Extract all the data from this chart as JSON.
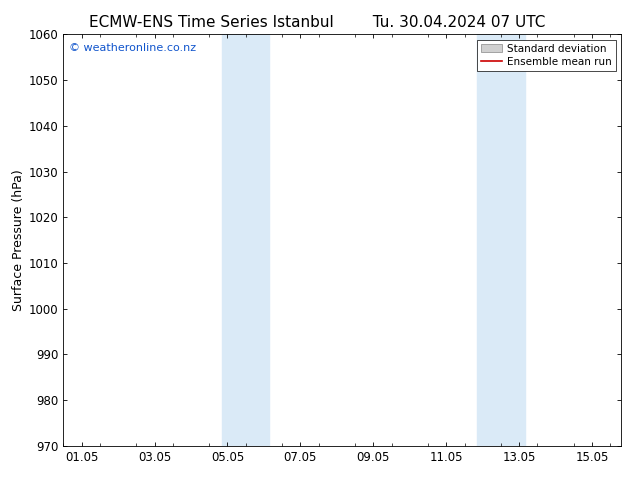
{
  "title_left": "ECMW-ENS Time Series Istanbul",
  "title_right": "Tu. 30.04.2024 07 UTC",
  "ylabel": "Surface Pressure (hPa)",
  "ylim": [
    970,
    1060
  ],
  "yticks": [
    970,
    980,
    990,
    1000,
    1010,
    1020,
    1030,
    1040,
    1050,
    1060
  ],
  "xtick_labels": [
    "01.05",
    "03.05",
    "05.05",
    "07.05",
    "09.05",
    "11.05",
    "13.05",
    "15.05"
  ],
  "xtick_positions": [
    0,
    2,
    4,
    6,
    8,
    10,
    12,
    14
  ],
  "xlim": [
    -0.5,
    14.8
  ],
  "shaded_bands": [
    {
      "xmin": 3.85,
      "xmax": 5.15
    },
    {
      "xmin": 10.85,
      "xmax": 12.15
    }
  ],
  "shaded_color": "#daeaf7",
  "watermark_text": "© weatheronline.co.nz",
  "watermark_color": "#1155cc",
  "legend_std_label": "Standard deviation",
  "legend_mean_label": "Ensemble mean run",
  "legend_std_facecolor": "#d0d0d0",
  "legend_std_edgecolor": "#888888",
  "legend_mean_color": "#cc0000",
  "bg_color": "#ffffff",
  "title_fontsize": 11,
  "ylabel_fontsize": 9,
  "tick_fontsize": 8.5,
  "watermark_fontsize": 8,
  "legend_fontsize": 7.5
}
